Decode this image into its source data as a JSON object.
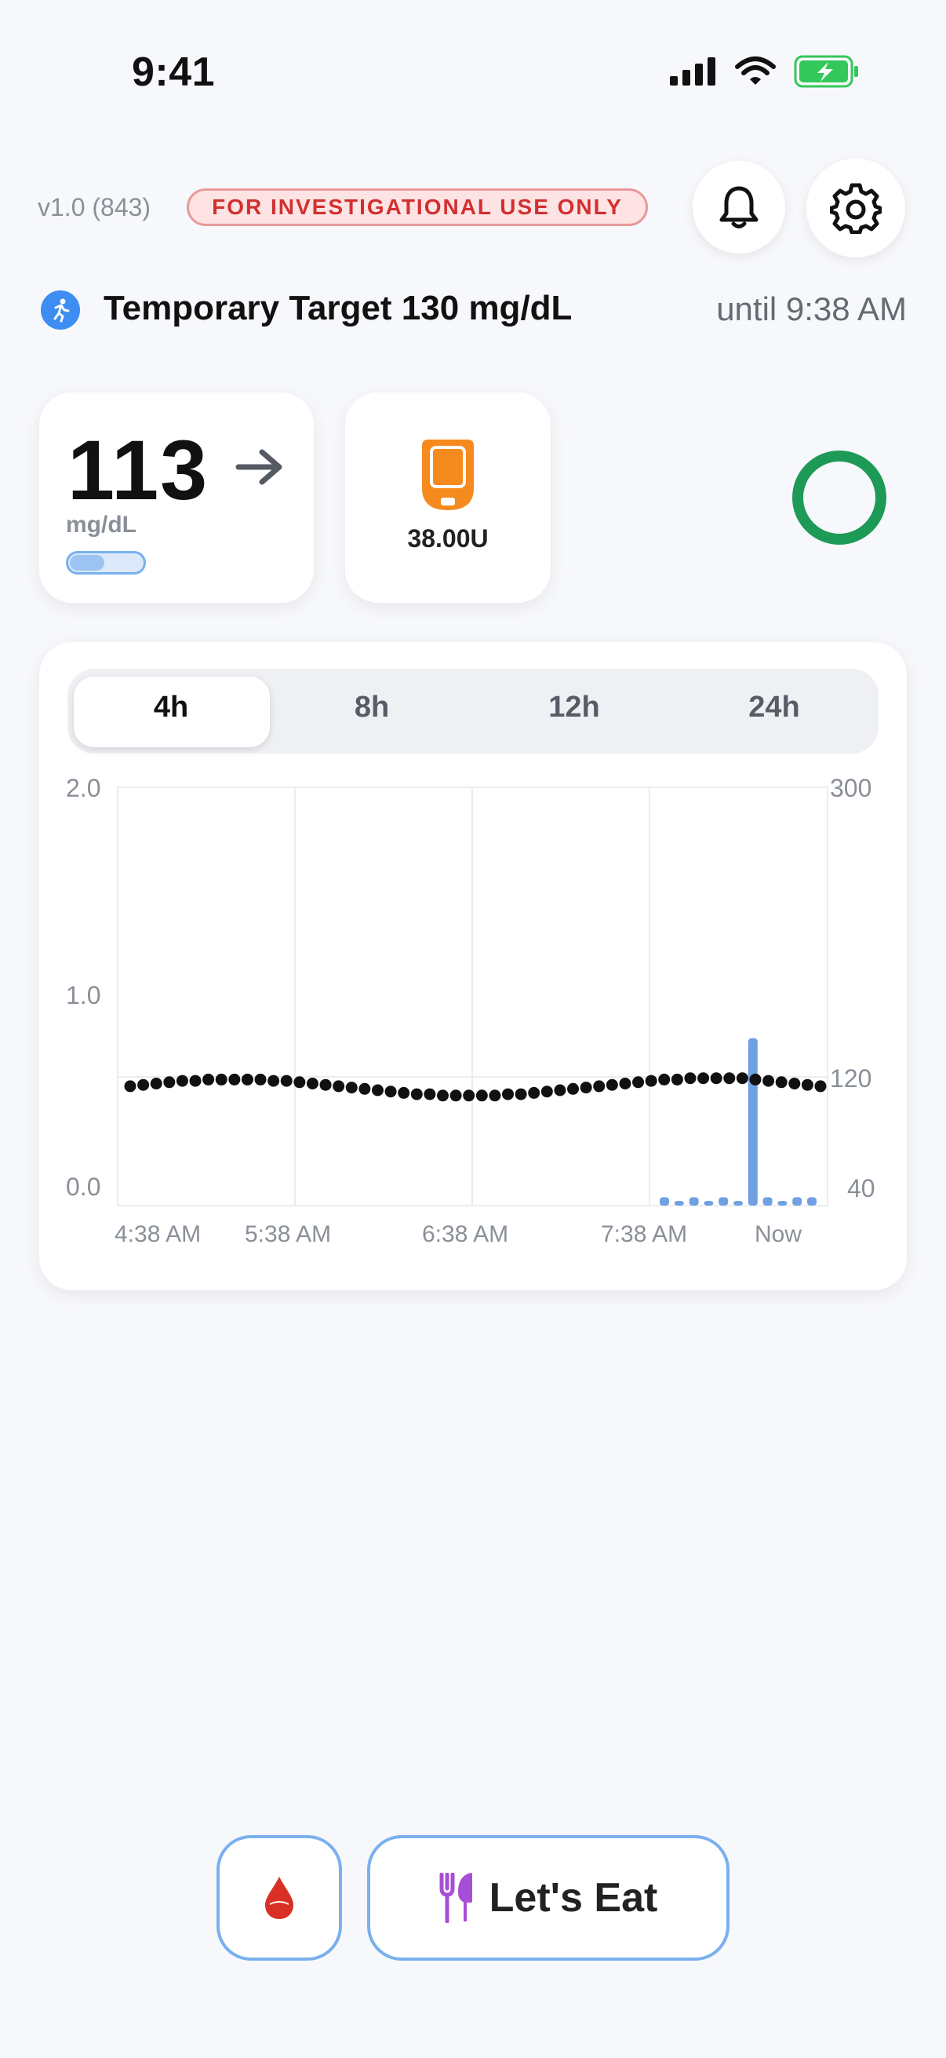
{
  "status_bar": {
    "time": "9:41"
  },
  "header": {
    "version": "v1.0 (843)",
    "badge": "FOR INVESTIGATIONAL USE ONLY",
    "badge_color": "#d2302f"
  },
  "temp_target": {
    "label": "Temporary Target 130 mg/dL",
    "until": "until 9:38 AM"
  },
  "glucose": {
    "value": "113",
    "unit": "mg/dL",
    "trend": "flat-arrow"
  },
  "pump": {
    "reservoir": "38.00U",
    "icon": "pump-reservoir-icon"
  },
  "loop_status_color": "#1e9a57",
  "range_tabs": [
    "4h",
    "8h",
    "12h",
    "24h"
  ],
  "selected_range": "4h",
  "chart_data": {
    "type": "scatter",
    "x_ticks": [
      "4:38 AM",
      "5:38 AM",
      "6:38 AM",
      "7:38 AM",
      "Now"
    ],
    "y_left_ticks": [
      "2.0",
      "1.0",
      "0.0"
    ],
    "y_left_range": [
      0,
      2
    ],
    "y_right_ticks": [
      "300",
      "120",
      "40"
    ],
    "y_right_range": [
      40,
      300
    ],
    "glucose_series": {
      "color": "#111111",
      "values": [
        113,
        114,
        115,
        116,
        117,
        117,
        118,
        118,
        118,
        118,
        118,
        117,
        117,
        116,
        115,
        114,
        113,
        112,
        111,
        110,
        109,
        108,
        107,
        107,
        106,
        106,
        106,
        106,
        106,
        107,
        107,
        108,
        109,
        110,
        111,
        112,
        113,
        114,
        115,
        116,
        117,
        118,
        118,
        119,
        119,
        119,
        119,
        119,
        118,
        117,
        116,
        115,
        114,
        113
      ]
    },
    "insulin_series": {
      "color": "#6fa0e2",
      "values": [
        0.04,
        0.01,
        0.04,
        0.01,
        0.04,
        0.01,
        0.8,
        0.04,
        0.02,
        0.04,
        0.04
      ]
    }
  },
  "actions": {
    "eat_label": "Let's Eat"
  }
}
